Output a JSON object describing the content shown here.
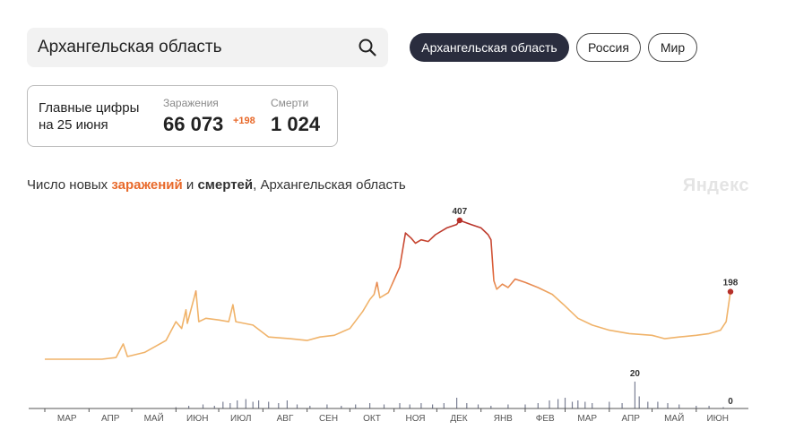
{
  "search": {
    "value": "Архангельская область"
  },
  "regions": [
    {
      "label": "Архангельская область",
      "active": true
    },
    {
      "label": "Россия",
      "active": false
    },
    {
      "label": "Мир",
      "active": false
    }
  ],
  "stats": {
    "heading_line1": "Главные цифры",
    "heading_line2": "на 25 июня",
    "infections_label": "Заражения",
    "infections_value": "66 073",
    "infections_delta": "+198",
    "deaths_label": "Смерти",
    "deaths_value": "1 024"
  },
  "chart_title": {
    "prefix": "Число новых ",
    "infections_word": "заражений",
    "middle": " и ",
    "deaths_word": "смертей",
    "suffix": ", Архангельская область"
  },
  "brand": "Яндекс",
  "colors": {
    "low": "#f0b36a",
    "mid": "#e0653a",
    "high": "#b5302a",
    "deaths_bars": "#7a7f93",
    "axis": "#555555"
  },
  "chart_data": {
    "type": "line",
    "x_start": "2020-03-01",
    "x_end": "2021-06-25",
    "months": [
      "МАР",
      "АПР",
      "МАЙ",
      "ИЮН",
      "ИЮЛ",
      "АВГ",
      "СЕН",
      "ОКТ",
      "НОЯ",
      "ДЕК",
      "ЯНВ",
      "ФЕВ",
      "МАР",
      "АПР",
      "МАЙ",
      "ИЮН"
    ],
    "infections": {
      "name": "заражения",
      "ylim": [
        0,
        407
      ],
      "peak_label": "407",
      "last_label": "198",
      "points": [
        [
          "2020-03-01",
          0
        ],
        [
          "2020-04-10",
          0
        ],
        [
          "2020-04-20",
          5
        ],
        [
          "2020-04-25",
          45
        ],
        [
          "2020-04-28",
          8
        ],
        [
          "2020-05-10",
          20
        ],
        [
          "2020-05-25",
          55
        ],
        [
          "2020-06-01",
          110
        ],
        [
          "2020-06-05",
          90
        ],
        [
          "2020-06-08",
          145
        ],
        [
          "2020-06-09",
          105
        ],
        [
          "2020-06-15",
          200
        ],
        [
          "2020-06-17",
          110
        ],
        [
          "2020-06-22",
          120
        ],
        [
          "2020-07-01",
          115
        ],
        [
          "2020-07-08",
          110
        ],
        [
          "2020-07-11",
          160
        ],
        [
          "2020-07-13",
          110
        ],
        [
          "2020-07-25",
          100
        ],
        [
          "2020-08-05",
          65
        ],
        [
          "2020-08-20",
          60
        ],
        [
          "2020-09-01",
          55
        ],
        [
          "2020-09-10",
          65
        ],
        [
          "2020-09-20",
          70
        ],
        [
          "2020-10-01",
          90
        ],
        [
          "2020-10-10",
          140
        ],
        [
          "2020-10-15",
          175
        ],
        [
          "2020-10-18",
          190
        ],
        [
          "2020-10-20",
          225
        ],
        [
          "2020-10-22",
          180
        ],
        [
          "2020-10-28",
          195
        ],
        [
          "2020-11-05",
          270
        ],
        [
          "2020-11-09",
          370
        ],
        [
          "2020-11-13",
          355
        ],
        [
          "2020-11-16",
          340
        ],
        [
          "2020-11-20",
          350
        ],
        [
          "2020-11-25",
          345
        ],
        [
          "2020-11-30",
          365
        ],
        [
          "2020-12-08",
          385
        ],
        [
          "2020-12-15",
          395
        ],
        [
          "2020-12-17",
          407
        ],
        [
          "2020-12-25",
          395
        ],
        [
          "2021-01-01",
          385
        ],
        [
          "2021-01-06",
          365
        ],
        [
          "2021-01-08",
          350
        ],
        [
          "2021-01-10",
          230
        ],
        [
          "2021-01-12",
          205
        ],
        [
          "2021-01-16",
          220
        ],
        [
          "2021-01-20",
          210
        ],
        [
          "2021-01-25",
          235
        ],
        [
          "2021-02-01",
          225
        ],
        [
          "2021-02-10",
          210
        ],
        [
          "2021-02-20",
          190
        ],
        [
          "2021-02-28",
          160
        ],
        [
          "2021-03-10",
          120
        ],
        [
          "2021-03-20",
          100
        ],
        [
          "2021-04-01",
          85
        ],
        [
          "2021-04-15",
          75
        ],
        [
          "2021-05-01",
          70
        ],
        [
          "2021-05-10",
          60
        ],
        [
          "2021-05-20",
          65
        ],
        [
          "2021-06-01",
          70
        ],
        [
          "2021-06-10",
          75
        ],
        [
          "2021-06-18",
          85
        ],
        [
          "2021-06-22",
          110
        ],
        [
          "2021-06-25",
          198
        ]
      ]
    },
    "deaths": {
      "name": "смерти",
      "ylim": [
        0,
        20
      ],
      "max_label": "20",
      "last_label": "0",
      "points": [
        [
          "2020-06-01",
          1
        ],
        [
          "2020-06-10",
          2
        ],
        [
          "2020-06-20",
          3
        ],
        [
          "2020-06-28",
          2
        ],
        [
          "2020-07-04",
          5
        ],
        [
          "2020-07-09",
          4
        ],
        [
          "2020-07-14",
          6
        ],
        [
          "2020-07-20",
          7
        ],
        [
          "2020-07-25",
          5
        ],
        [
          "2020-07-29",
          6
        ],
        [
          "2020-08-05",
          5
        ],
        [
          "2020-08-12",
          4
        ],
        [
          "2020-08-18",
          6
        ],
        [
          "2020-08-25",
          3
        ],
        [
          "2020-09-03",
          2
        ],
        [
          "2020-09-15",
          3
        ],
        [
          "2020-09-25",
          2
        ],
        [
          "2020-10-05",
          3
        ],
        [
          "2020-10-15",
          4
        ],
        [
          "2020-10-25",
          3
        ],
        [
          "2020-11-05",
          4
        ],
        [
          "2020-11-12",
          3
        ],
        [
          "2020-11-20",
          4
        ],
        [
          "2020-11-28",
          3
        ],
        [
          "2020-12-06",
          4
        ],
        [
          "2020-12-15",
          8
        ],
        [
          "2020-12-22",
          4
        ],
        [
          "2020-12-30",
          3
        ],
        [
          "2021-01-08",
          2
        ],
        [
          "2021-01-20",
          3
        ],
        [
          "2021-02-01",
          3
        ],
        [
          "2021-02-10",
          4
        ],
        [
          "2021-02-18",
          6
        ],
        [
          "2021-02-24",
          7
        ],
        [
          "2021-03-01",
          8
        ],
        [
          "2021-03-06",
          5
        ],
        [
          "2021-03-10",
          6
        ],
        [
          "2021-03-15",
          5
        ],
        [
          "2021-03-20",
          4
        ],
        [
          "2021-04-01",
          5
        ],
        [
          "2021-04-10",
          4
        ],
        [
          "2021-04-19",
          20
        ],
        [
          "2021-04-22",
          9
        ],
        [
          "2021-04-28",
          5
        ],
        [
          "2021-05-05",
          5
        ],
        [
          "2021-05-12",
          4
        ],
        [
          "2021-05-20",
          3
        ],
        [
          "2021-06-01",
          2
        ],
        [
          "2021-06-10",
          2
        ],
        [
          "2021-06-20",
          1
        ],
        [
          "2021-06-25",
          0
        ]
      ]
    }
  }
}
